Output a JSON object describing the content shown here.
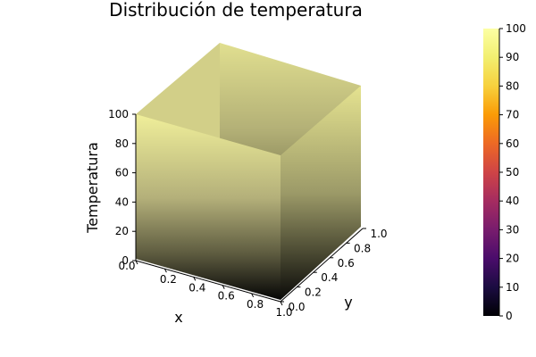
{
  "chart_data": {
    "type": "surface",
    "title": "Distribución de temperatura",
    "xlabel": "x",
    "ylabel": "y",
    "zlabel": "Temperatura",
    "x_ticks": [
      "0.0",
      "0.2",
      "0.4",
      "0.6",
      "0.8",
      "1.0"
    ],
    "y_ticks": [
      "0.0",
      "0.2",
      "0.4",
      "0.6",
      "0.8",
      "1.0"
    ],
    "z_ticks": [
      "0",
      "20",
      "40",
      "60",
      "80",
      "100"
    ],
    "xlim": [
      0,
      1
    ],
    "ylim": [
      0,
      1
    ],
    "zlim": [
      0,
      100
    ],
    "colormap": "inferno",
    "colorbar": {
      "ticks": [
        "0",
        "10",
        "20",
        "30",
        "40",
        "50",
        "60",
        "70",
        "80",
        "90",
        "100"
      ],
      "range": [
        0,
        100
      ]
    },
    "surface": {
      "description_values": "boundary walls at 100 along all four edges of the unit square; interior cells at 0",
      "grid_x": [
        0,
        1
      ],
      "grid_y": [
        0,
        1
      ],
      "edge_value": 100,
      "interior_value": 0
    },
    "colors": {
      "top": "#f3f095",
      "bottom": "#000004"
    }
  }
}
